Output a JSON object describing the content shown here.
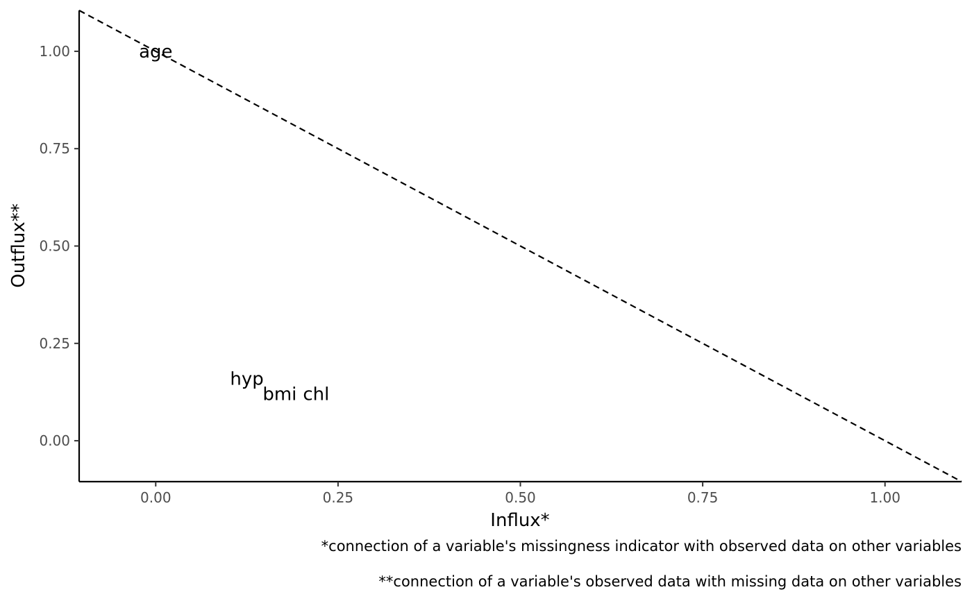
{
  "chart_data": {
    "type": "scatter",
    "title": "",
    "xlabel": "Influx*",
    "ylabel": "Outflux**",
    "xlim": [
      -0.105,
      1.105
    ],
    "ylim": [
      -0.105,
      1.105
    ],
    "x_ticks": [
      0.0,
      0.25,
      0.5,
      0.75,
      1.0
    ],
    "x_tick_labels": [
      "0.00",
      "0.25",
      "0.50",
      "0.75",
      "1.00"
    ],
    "y_ticks": [
      0.0,
      0.25,
      0.5,
      0.75,
      1.0
    ],
    "y_tick_labels": [
      "0.00",
      "0.25",
      "0.50",
      "0.75",
      "1.00"
    ],
    "points": [
      {
        "label": "age",
        "x": 0.0,
        "y": 1.0
      },
      {
        "label": "hyp",
        "x": 0.125,
        "y": 0.16
      },
      {
        "label": "bmi",
        "x": 0.17,
        "y": 0.12
      },
      {
        "label": "chl",
        "x": 0.22,
        "y": 0.12
      }
    ],
    "reference_line": {
      "style": "dashed",
      "from": [
        -0.105,
        1.105
      ],
      "to": [
        1.105,
        -0.105
      ]
    },
    "grid": false,
    "captions": [
      "*connection of a variable's missingness indicator with observed data on other variables",
      "**connection of a variable's observed data with missing data on other variables"
    ],
    "colors": {
      "text": "#000000",
      "tick_text": "#4d4d4d",
      "axis": "#000000"
    }
  }
}
